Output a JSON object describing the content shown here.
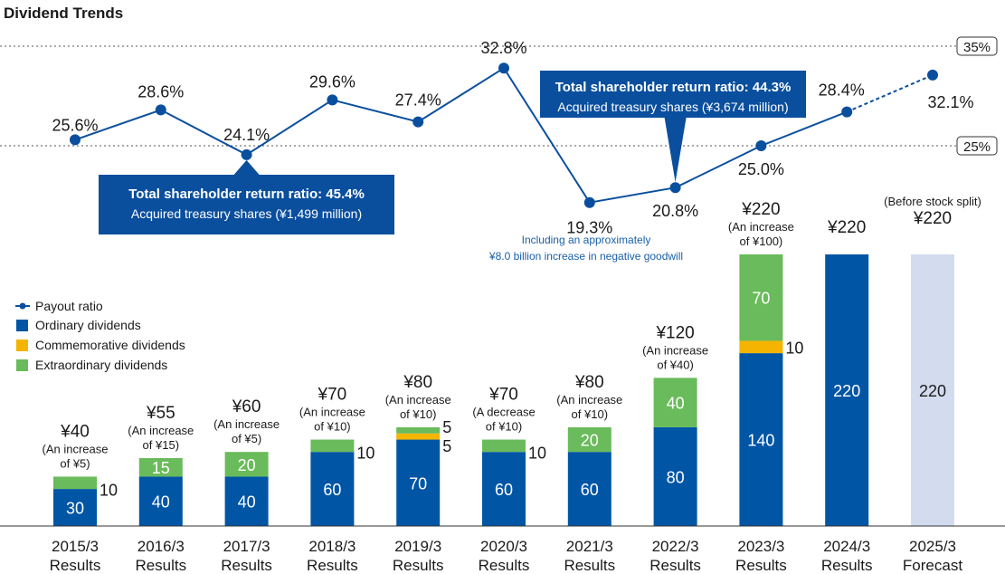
{
  "chart_data": {
    "type": "bar",
    "title": "Dividend Trends",
    "categories": [
      {
        "year": "2015/3",
        "kind": "Results"
      },
      {
        "year": "2016/3",
        "kind": "Results"
      },
      {
        "year": "2017/3",
        "kind": "Results"
      },
      {
        "year": "2018/3",
        "kind": "Results"
      },
      {
        "year": "2019/3",
        "kind": "Results"
      },
      {
        "year": "2020/3",
        "kind": "Results"
      },
      {
        "year": "2021/3",
        "kind": "Results"
      },
      {
        "year": "2022/3",
        "kind": "Results"
      },
      {
        "year": "2023/3",
        "kind": "Results"
      },
      {
        "year": "2024/3",
        "kind": "Results"
      },
      {
        "year": "2025/3",
        "kind": "Forecast"
      }
    ],
    "legend": [
      {
        "key": "payout",
        "label": "Payout ratio"
      },
      {
        "key": "ordinary",
        "label": "Ordinary dividends"
      },
      {
        "key": "commemorative",
        "label": "Commemorative dividends"
      },
      {
        "key": "extraordinary",
        "label": "Extraordinary dividends"
      }
    ],
    "colors": {
      "ordinary": "#0055a5",
      "commemorative": "#f5b400",
      "extraordinary": "#6abb5b",
      "forecast": "#d3dcee",
      "line": "#0a4f9e",
      "callout": "#0a4f9e",
      "note": "#1a5fa8"
    },
    "series": [
      {
        "key": "ordinary",
        "values": [
          30,
          40,
          40,
          60,
          70,
          60,
          60,
          80,
          140,
          220,
          220
        ]
      },
      {
        "key": "commemorative",
        "values": [
          0,
          0,
          0,
          0,
          5,
          0,
          0,
          0,
          10,
          0,
          0
        ]
      },
      {
        "key": "extraordinary",
        "values": [
          10,
          15,
          20,
          10,
          5,
          10,
          20,
          40,
          70,
          0,
          0
        ]
      }
    ],
    "bar_labels": {
      "ordinary": [
        "30",
        "40",
        "40",
        "60",
        "70",
        "60",
        "60",
        "80",
        "140",
        "220",
        "220"
      ],
      "side": [
        {
          "index": 0,
          "text": "10",
          "key": "extraordinary"
        },
        {
          "index": 3,
          "text": "10",
          "key": "extraordinary"
        },
        {
          "index": 4,
          "text": "5",
          "key": "extraordinary"
        },
        {
          "index": 4,
          "text": "5",
          "key": "commemorative"
        },
        {
          "index": 5,
          "text": "10",
          "key": "extraordinary"
        },
        {
          "index": 8,
          "text": "10",
          "key": "commemorative"
        }
      ],
      "inside": [
        {
          "index": 1,
          "text": "15",
          "key": "extraordinary"
        },
        {
          "index": 2,
          "text": "20",
          "key": "extraordinary"
        },
        {
          "index": 6,
          "text": "20",
          "key": "extraordinary"
        },
        {
          "index": 7,
          "text": "40",
          "key": "extraordinary"
        },
        {
          "index": 8,
          "text": "70",
          "key": "extraordinary"
        }
      ]
    },
    "totals": [
      "¥40",
      "¥55",
      "¥60",
      "¥70",
      "¥80",
      "¥70",
      "¥80",
      "¥120",
      "¥220",
      "¥220",
      "¥220"
    ],
    "total_notes": [
      [
        "(An increase",
        "of ¥5)"
      ],
      [
        "(An increase",
        "of ¥15)"
      ],
      [
        "(An increase",
        "of ¥5)"
      ],
      [
        "(An increase",
        "of ¥10)"
      ],
      [
        "(An increase",
        "of ¥10)"
      ],
      [
        "(A decrease",
        "of ¥10)"
      ],
      [
        "(An increase",
        "of ¥10)"
      ],
      [
        "(An increase",
        "of ¥40)"
      ],
      [
        "(An increase",
        "of ¥100)"
      ],
      [],
      [
        "(Before stock split)"
      ]
    ],
    "payout_ratio": {
      "values": [
        25.6,
        28.6,
        24.1,
        29.6,
        27.4,
        32.8,
        19.3,
        20.8,
        25.0,
        28.4,
        32.1
      ],
      "labels": [
        "25.6%",
        "28.6%",
        "24.1%",
        "29.6%",
        "27.4%",
        "32.8%",
        "19.3%",
        "20.8%",
        "25.0%",
        "28.4%",
        "32.1%"
      ],
      "forecast_from_index": 9
    },
    "reference_lines": [
      {
        "value": 35,
        "label": "35%"
      },
      {
        "value": 25,
        "label": "25%"
      }
    ],
    "callouts": [
      {
        "index": 2,
        "line1": "Total shareholder return ratio: 45.4%",
        "line2": "Acquired treasury shares (¥1,499 million)"
      },
      {
        "index": 7,
        "line1": "Total shareholder return ratio: 44.3%",
        "line2": "Acquired treasury shares (¥3,674 million)"
      }
    ],
    "note": [
      "Including an approximately",
      "¥8.0 billion increase in negative goodwill"
    ]
  }
}
